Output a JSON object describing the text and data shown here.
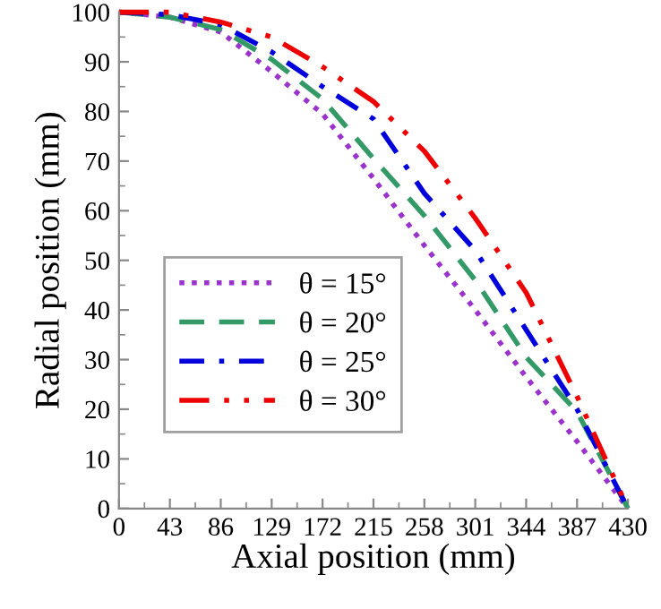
{
  "chart_data": {
    "type": "line",
    "xlabel": "Axial position (mm)",
    "ylabel": "Radial position (mm)",
    "x": [
      0,
      43,
      86,
      129,
      172,
      215,
      258,
      301,
      344,
      387,
      430
    ],
    "series": [
      {
        "name": "θ = 15°",
        "color": "#9933cc",
        "line_style": "dotted",
        "values": [
          100,
          99,
          96,
          88,
          79.5,
          66.5,
          53,
          40,
          26.5,
          13.5,
          0
        ]
      },
      {
        "name": "θ = 20°",
        "color": "#339966",
        "line_style": "dashed",
        "values": [
          100,
          99,
          96.5,
          90.5,
          82.5,
          70.5,
          59,
          46,
          30.5,
          19.5,
          0
        ]
      },
      {
        "name": "θ = 25°",
        "color": "#0000dd",
        "line_style": "dashdot",
        "values": [
          100,
          99.5,
          97.5,
          92,
          85,
          78.5,
          63.5,
          52,
          36,
          20,
          0
        ]
      },
      {
        "name": "θ = 30°",
        "color": "#ee0000",
        "line_style": "dashdotdot",
        "values": [
          100,
          100,
          98,
          95,
          89,
          82,
          72,
          58.5,
          43.5,
          22.6,
          0
        ]
      }
    ],
    "xlim": [
      0,
      430
    ],
    "ylim": [
      0,
      100
    ],
    "xticks": [
      0,
      43,
      86,
      129,
      172,
      215,
      258,
      301,
      344,
      387,
      430
    ],
    "yticks": [
      0,
      10,
      20,
      30,
      40,
      50,
      60,
      70,
      80,
      90,
      100
    ],
    "grid": false,
    "legend": "left"
  }
}
